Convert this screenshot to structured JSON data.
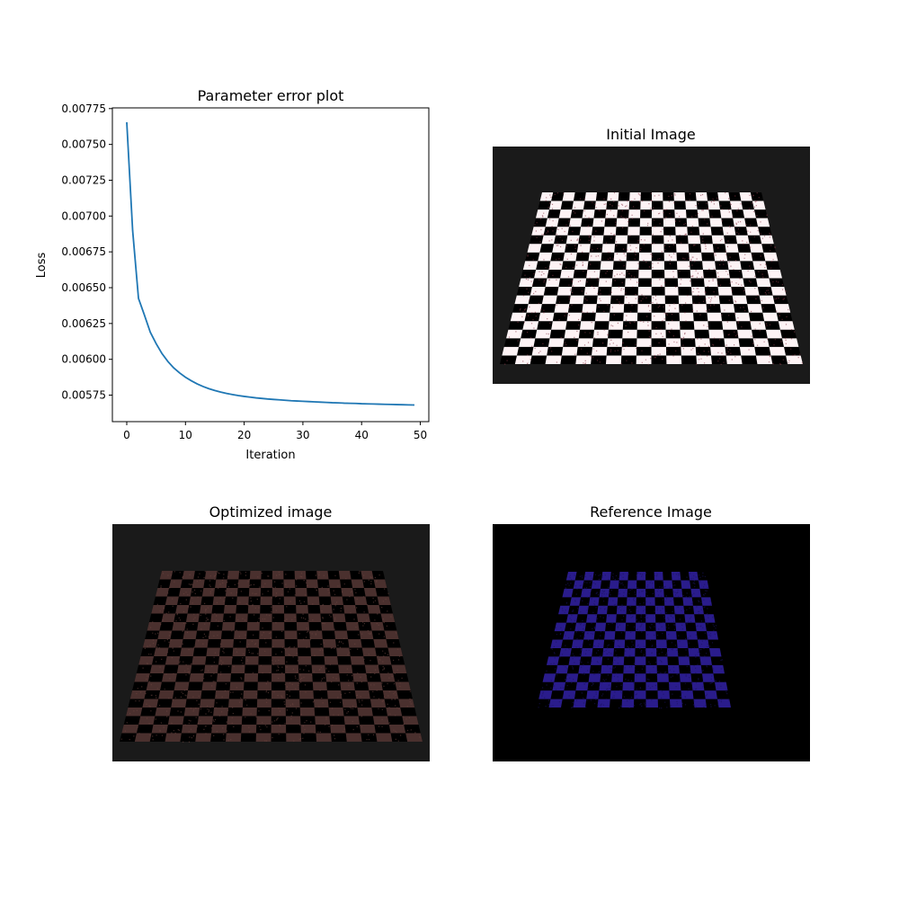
{
  "chart_data": [
    {
      "type": "line",
      "title": "Parameter error plot",
      "xlabel": "Iteration",
      "ylabel": "Loss",
      "xlim": [
        -2.45,
        51.45
      ],
      "ylim": [
        0.005565,
        0.007755
      ],
      "xticks": [
        0,
        10,
        20,
        30,
        40,
        50
      ],
      "xtick_labels": [
        "0",
        "10",
        "20",
        "30",
        "40",
        "50"
      ],
      "yticks": [
        0.00575,
        0.006,
        0.00625,
        0.0065,
        0.00675,
        0.007,
        0.00725,
        0.0075,
        0.00775
      ],
      "ytick_labels": [
        "0.00575",
        "0.00600",
        "0.00625",
        "0.00650",
        "0.00675",
        "0.00700",
        "0.00725",
        "0.00750",
        "0.00775"
      ],
      "grid": false,
      "color": "#1f77b4",
      "series": [
        {
          "x": [
            0,
            1,
            2,
            3,
            4,
            5,
            6,
            7,
            8,
            9,
            10,
            11,
            12,
            13,
            14,
            15,
            16,
            17,
            18,
            19,
            20,
            21,
            22,
            23,
            24,
            25,
            26,
            27,
            28,
            29,
            30,
            31,
            32,
            33,
            34,
            35,
            36,
            37,
            38,
            39,
            40,
            41,
            42,
            43,
            44,
            45,
            46,
            47,
            48,
            49
          ],
          "values": [
            0.007655,
            0.0069,
            0.006425,
            0.00631,
            0.00619,
            0.00611,
            0.00604,
            0.005985,
            0.00594,
            0.005905,
            0.005875,
            0.00585,
            0.005828,
            0.00581,
            0.005795,
            0.005782,
            0.005771,
            0.005762,
            0.005754,
            0.005747,
            0.005741,
            0.005736,
            0.005731,
            0.005727,
            0.005723,
            0.00572,
            0.005717,
            0.005714,
            0.005711,
            0.005709,
            0.005707,
            0.005705,
            0.005703,
            0.005701,
            0.005699,
            0.005697,
            0.005696,
            0.005694,
            0.005693,
            0.005692,
            0.00569,
            0.005689,
            0.005688,
            0.005687,
            0.005686,
            0.005685,
            0.005684,
            0.005683,
            0.005682,
            0.005681
          ]
        }
      ]
    },
    {
      "type": "image",
      "title": "Initial Image",
      "background": "#1a1a1a",
      "light_color": "#fdf3f5",
      "dark_color": "#000000",
      "noise_color": "#8b3a4a"
    },
    {
      "type": "image",
      "title": "Optimized image",
      "background": "#1a1a1a",
      "light_color": "#4a302e",
      "dark_color": "#000000",
      "noise_color": "#6b4540"
    },
    {
      "type": "image",
      "title": "Reference Image",
      "background": "#000000",
      "light_color": "#2a1c8c",
      "dark_color": "#000000",
      "noise_color": "#1a1260"
    }
  ]
}
